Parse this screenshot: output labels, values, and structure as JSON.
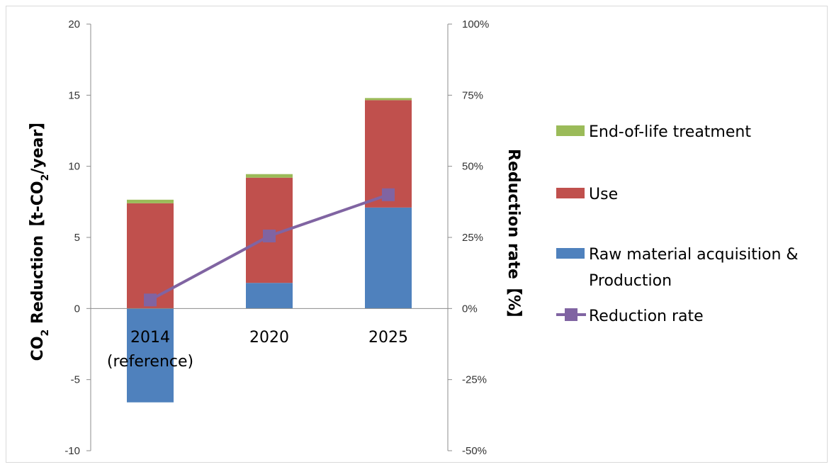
{
  "chart_data": {
    "type": "bar",
    "stacked": true,
    "categories": [
      [
        "2014",
        "(reference)"
      ],
      [
        "2020"
      ],
      [
        "2025"
      ]
    ],
    "series": [
      {
        "name": "Raw material acquisition & Production",
        "values": [
          -6.6,
          1.8,
          7.1
        ],
        "color": "#4f81bd"
      },
      {
        "name": "Use",
        "values": [
          7.4,
          7.4,
          7.55
        ],
        "color": "#c0504d"
      },
      {
        "name": "End-of-life treatment",
        "values": [
          0.25,
          0.25,
          0.15
        ],
        "color": "#9bbb59"
      }
    ],
    "line_series": {
      "name": "Reduction  rate",
      "axis": "right",
      "values": [
        3,
        25.5,
        40
      ],
      "color": "#8064a2"
    },
    "y_left": {
      "min": -10,
      "max": 20,
      "ticks": [
        "-10",
        "-5",
        "0",
        "5",
        "10",
        "15",
        "20"
      ]
    },
    "y_right": {
      "min": -50,
      "max": 100,
      "ticks": [
        "-50%",
        "-25%",
        "0%",
        "25%",
        "50%",
        "75%",
        "100%"
      ]
    },
    "ylabel_left": {
      "pre": "CO",
      "sub": "2",
      "mid": " Reduction【t-CO",
      "sub2": "2",
      "post": "/year】"
    },
    "ylabel_right": "Reduction rate【%】",
    "legend": {
      "placement": "right",
      "order": [
        "End-of-life treatment",
        "Use",
        "Raw material acquisition & Production",
        "Reduction  rate"
      ],
      "wrap": {
        "Raw material acquisition & Production": [
          "Raw material acquisition &",
          "Production"
        ]
      }
    },
    "grid": false
  }
}
